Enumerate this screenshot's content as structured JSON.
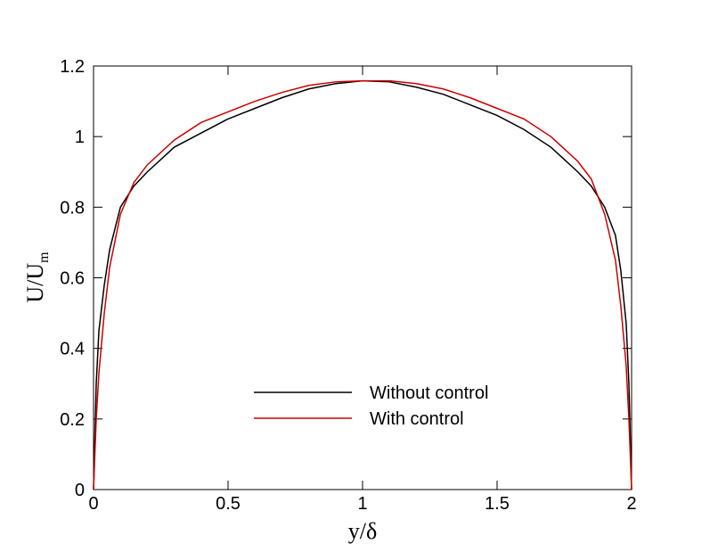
{
  "chart_data": {
    "type": "line",
    "xlabel": "y/δ",
    "ylabel": "U/U",
    "ylabel_sub": "m",
    "xlim": [
      0,
      2
    ],
    "ylim": [
      0,
      1.2
    ],
    "xticks": [
      0,
      0.5,
      1,
      1.5,
      2
    ],
    "yticks": [
      0,
      0.2,
      0.4,
      0.6,
      0.8,
      1,
      1.2
    ],
    "x": [
      0,
      0.01,
      0.02,
      0.04,
      0.06,
      0.1,
      0.15,
      0.2,
      0.3,
      0.4,
      0.5,
      0.6,
      0.7,
      0.8,
      0.9,
      1.0,
      1.1,
      1.2,
      1.3,
      1.4,
      1.5,
      1.6,
      1.7,
      1.8,
      1.85,
      1.9,
      1.94,
      1.96,
      1.98,
      1.99,
      2
    ],
    "series": [
      {
        "name": "Without control",
        "color": "#000000",
        "values": [
          0,
          0.3,
          0.45,
          0.58,
          0.68,
          0.8,
          0.86,
          0.9,
          0.97,
          1.01,
          1.05,
          1.08,
          1.11,
          1.135,
          1.15,
          1.158,
          1.155,
          1.14,
          1.12,
          1.09,
          1.06,
          1.02,
          0.97,
          0.9,
          0.86,
          0.8,
          0.72,
          0.62,
          0.47,
          0.3,
          0
        ]
      },
      {
        "name": "With control",
        "color": "#cc0000",
        "values": [
          0,
          0.2,
          0.33,
          0.5,
          0.63,
          0.78,
          0.87,
          0.92,
          0.99,
          1.04,
          1.07,
          1.1,
          1.125,
          1.145,
          1.155,
          1.158,
          1.158,
          1.15,
          1.135,
          1.11,
          1.08,
          1.05,
          1.0,
          0.93,
          0.88,
          0.78,
          0.65,
          0.52,
          0.35,
          0.2,
          0
        ]
      }
    ],
    "legend": "lower-center"
  }
}
